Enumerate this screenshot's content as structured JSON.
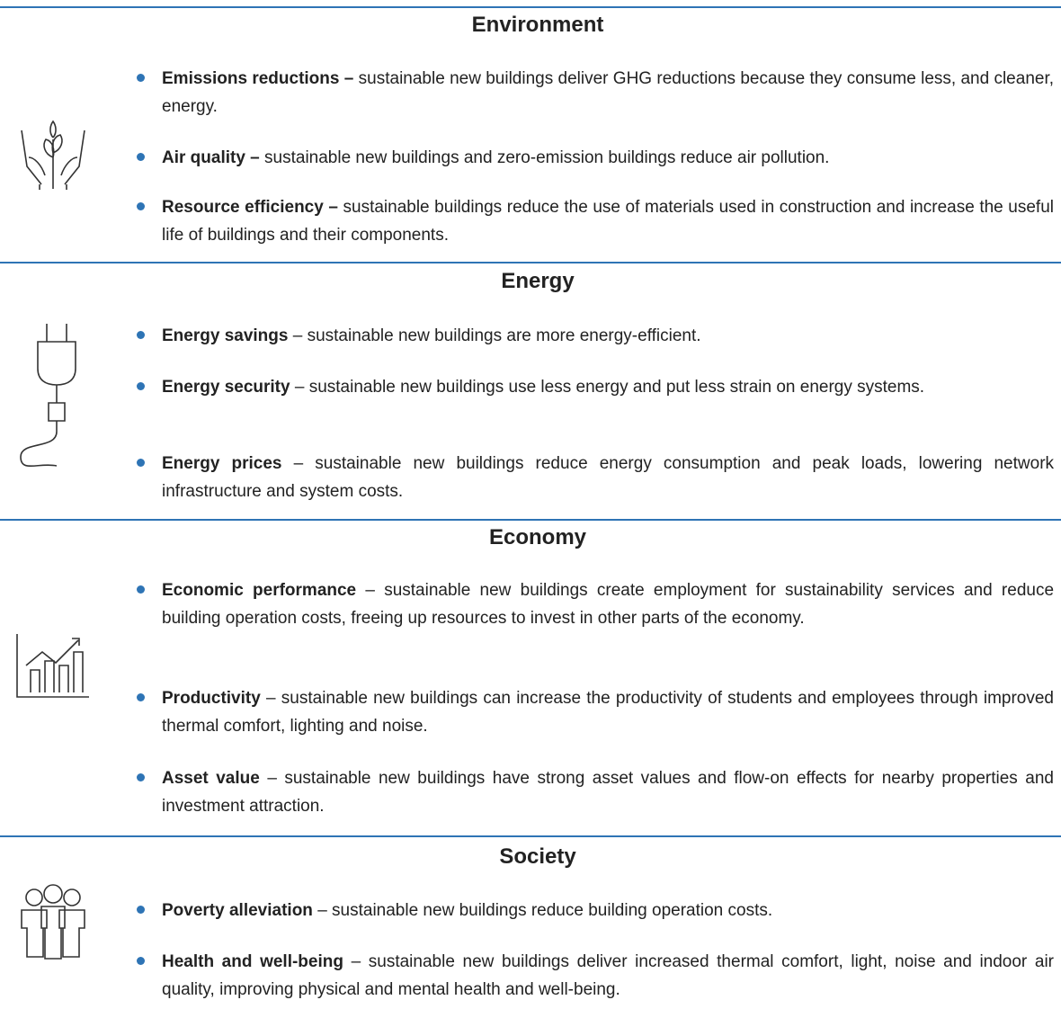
{
  "sections": [
    {
      "title": "Environment",
      "items": [
        {
          "term": "Emissions reductions –",
          "text": "sustainable new buildings deliver GHG reductions because they consume less, and cleaner, energy."
        },
        {
          "term": "Air quality –",
          "text": "sustainable new buildings and zero-emission buildings reduce air pollution."
        },
        {
          "term": "Resource efficiency –",
          "text": "sustainable buildings reduce the use of materials used in construction and increase the useful life of buildings and their components."
        }
      ]
    },
    {
      "title": "Energy",
      "items": [
        {
          "term": "Energy savings",
          "text": "– sustainable new buildings are more energy-efficient."
        },
        {
          "term": "Energy security",
          "text": "– sustainable new buildings use less energy and put less strain on energy systems."
        },
        {
          "term": "Energy prices",
          "text": "– sustainable new buildings reduce energy consumption and peak loads, lowering network infrastructure and system costs."
        }
      ]
    },
    {
      "title": "Economy",
      "items": [
        {
          "term": "Economic performance",
          "text": "– sustainable new buildings create employment for sustainability services and reduce building operation costs, freeing up resources to invest in other parts of the economy."
        },
        {
          "term": "Productivity",
          "text": "– sustainable new buildings can increase the productivity of students and employees through improved thermal comfort, lighting and noise."
        },
        {
          "term": "Asset value",
          "text": "– sustainable new buildings have strong asset values and flow-on effects for nearby properties and investment attraction."
        }
      ]
    },
    {
      "title": "Society",
      "items": [
        {
          "term": "Poverty alleviation",
          "text": "– sustainable new buildings reduce building operation costs."
        },
        {
          "term": "Health and well-being",
          "text": "– sustainable new buildings deliver increased thermal comfort, light, noise and indoor air quality, improving physical and mental health and well-being."
        }
      ]
    }
  ]
}
